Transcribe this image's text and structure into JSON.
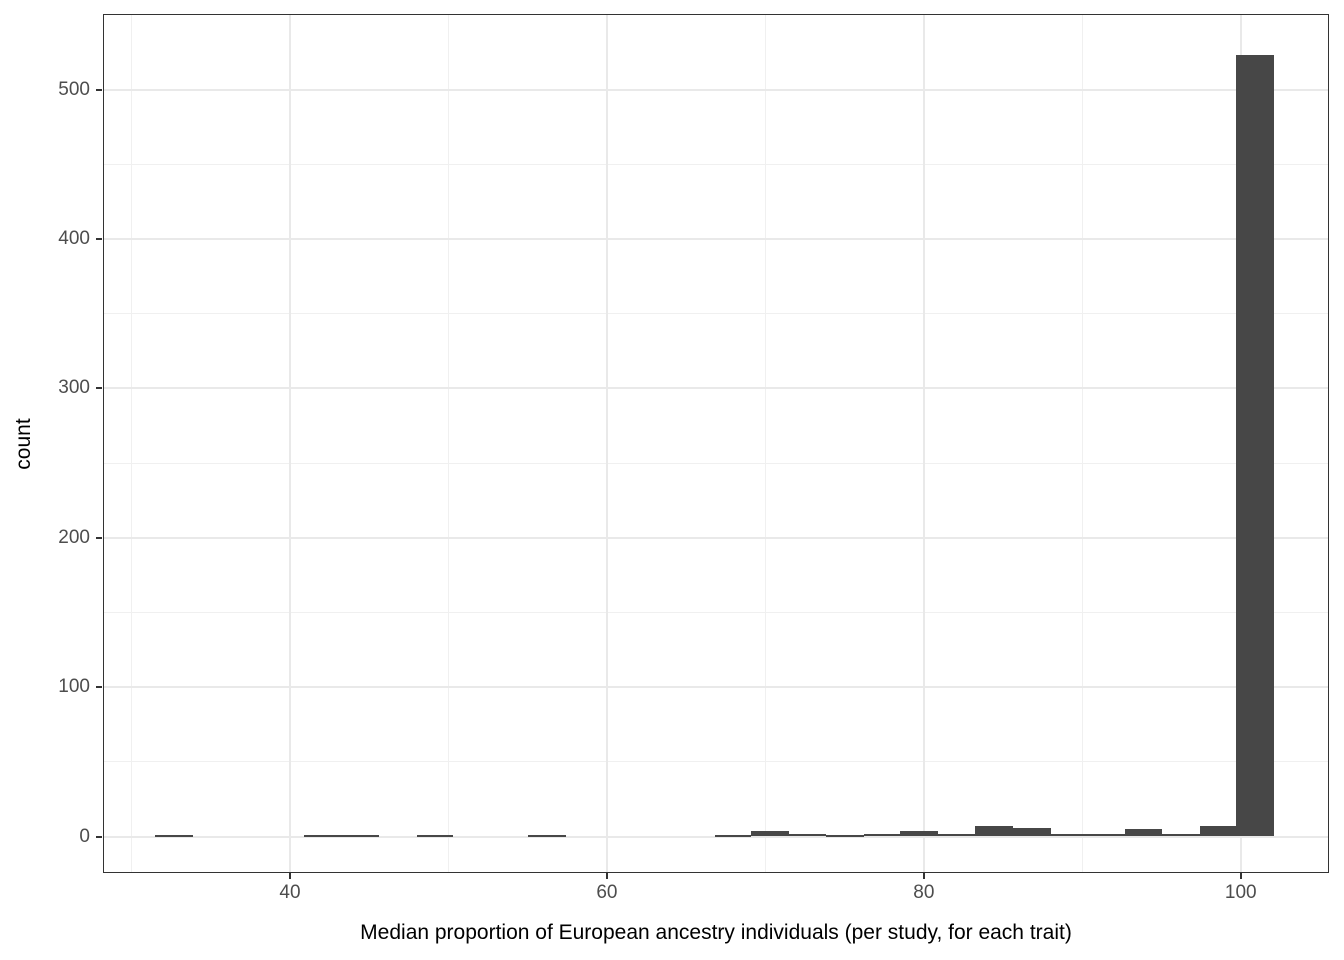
{
  "figure": {
    "background": "#ffffff",
    "bar_fill": "#474747",
    "panel_border_color": "#333333",
    "grid_major_color": "#e9e9e9",
    "grid_minor_color": "#f0f0f0",
    "tick_mark_color": "#333333",
    "tick_label_color": "#4d4d4d",
    "axis_title_color": "#000000"
  },
  "chart_data": {
    "type": "bar",
    "subtype": "histogram",
    "title": "",
    "xlabel": "Median proportion of European ancestry individuals (per study, for each trait)",
    "ylabel": "count",
    "xlim": [
      28.2,
      105.6
    ],
    "ylim": [
      -24,
      550
    ],
    "x_major_ticks": [
      40,
      60,
      80,
      100
    ],
    "x_minor_ticks": [
      30,
      50,
      70,
      90
    ],
    "y_major_ticks": [
      0,
      100,
      200,
      300,
      400,
      500
    ],
    "y_minor_ticks": [
      50,
      150,
      250,
      350,
      450,
      550
    ],
    "grid": true,
    "legend": false,
    "binwidth": 2.35,
    "bins": [
      {
        "x0": 31.5,
        "x1": 33.9,
        "count": 1
      },
      {
        "x0": 40.9,
        "x1": 43.3,
        "count": 1
      },
      {
        "x0": 43.3,
        "x1": 45.6,
        "count": 1
      },
      {
        "x0": 48.0,
        "x1": 50.3,
        "count": 1
      },
      {
        "x0": 55.0,
        "x1": 57.4,
        "count": 1
      },
      {
        "x0": 66.8,
        "x1": 69.1,
        "count": 1
      },
      {
        "x0": 69.1,
        "x1": 71.5,
        "count": 4
      },
      {
        "x0": 71.5,
        "x1": 73.8,
        "count": 2
      },
      {
        "x0": 73.8,
        "x1": 76.2,
        "count": 1
      },
      {
        "x0": 76.2,
        "x1": 78.5,
        "count": 2
      },
      {
        "x0": 78.5,
        "x1": 80.9,
        "count": 4
      },
      {
        "x0": 80.9,
        "x1": 83.2,
        "count": 2
      },
      {
        "x0": 83.2,
        "x1": 85.6,
        "count": 7
      },
      {
        "x0": 85.6,
        "x1": 88.0,
        "count": 6
      },
      {
        "x0": 88.0,
        "x1": 90.3,
        "count": 2
      },
      {
        "x0": 90.3,
        "x1": 92.7,
        "count": 2
      },
      {
        "x0": 92.7,
        "x1": 95.0,
        "count": 5
      },
      {
        "x0": 95.0,
        "x1": 97.4,
        "count": 2
      },
      {
        "x0": 97.4,
        "x1": 99.7,
        "count": 7
      },
      {
        "x0": 99.7,
        "x1": 102.1,
        "count": 523
      }
    ]
  }
}
